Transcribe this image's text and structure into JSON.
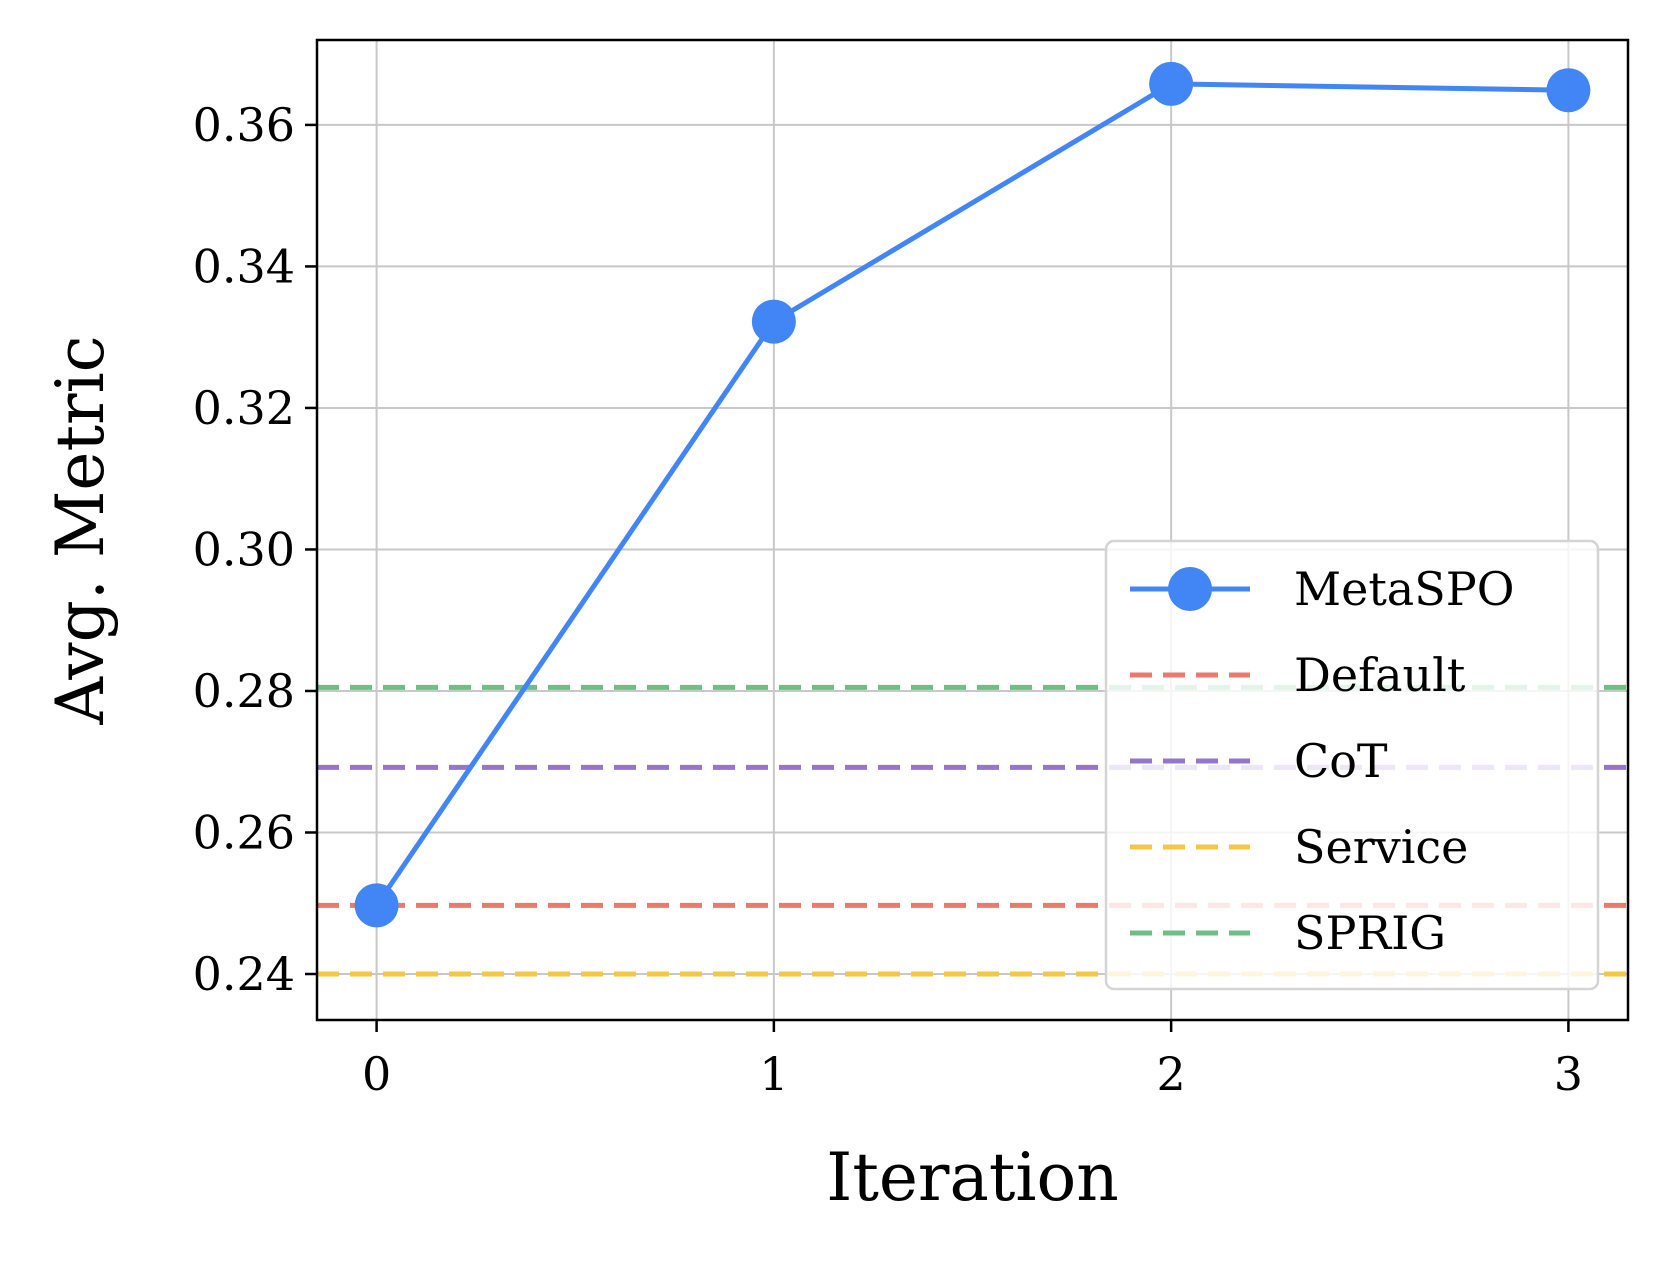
{
  "chart_data": {
    "type": "line",
    "title": "",
    "xlabel": "Iteration",
    "ylabel": "Avg. Metric",
    "x": [
      0,
      1,
      2,
      3
    ],
    "xlim": [
      -0.15,
      3.15
    ],
    "ylim": [
      0.2335,
      0.372
    ],
    "xticks": [
      0,
      1,
      2,
      3
    ],
    "yticks": [
      0.24,
      0.26,
      0.28,
      0.3,
      0.32,
      0.34,
      0.36
    ],
    "grid": true,
    "legend_position": "lower-right",
    "series": [
      {
        "name": "MetaSPO",
        "style": "line-marker",
        "color": "#4285f4",
        "values": [
          0.2497,
          0.3322,
          0.3658,
          0.3649
        ]
      },
      {
        "name": "Default",
        "style": "dashed-hline",
        "color": "#ea7a6e",
        "value": 0.2497
      },
      {
        "name": "CoT",
        "style": "dashed-hline",
        "color": "#9575cd",
        "value": 0.2692
      },
      {
        "name": "Service",
        "style": "dashed-hline",
        "color": "#f6c744",
        "value": 0.24
      },
      {
        "name": "SPRIG",
        "style": "dashed-hline",
        "color": "#6fbf84",
        "value": 0.2805
      }
    ]
  }
}
